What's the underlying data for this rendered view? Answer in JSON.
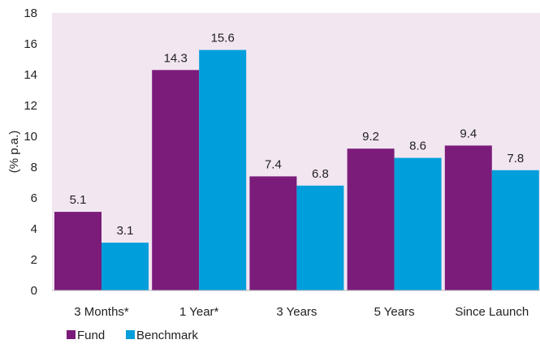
{
  "chart_data": {
    "type": "bar",
    "categories": [
      "3 Months*",
      "1 Year*",
      "3 Years",
      "5 Years",
      "Since Launch"
    ],
    "series": [
      {
        "name": "Fund",
        "values": [
          5.1,
          14.3,
          7.4,
          9.2,
          9.4
        ],
        "color": "#7B1C7A"
      },
      {
        "name": "Benchmark",
        "values": [
          3.1,
          15.6,
          6.8,
          8.6,
          7.8
        ],
        "color": "#009EDB"
      }
    ],
    "ylabel": "(% p.a.)",
    "xlabel": "",
    "ylim": [
      0,
      18
    ],
    "yticks": [
      0,
      2,
      4,
      6,
      8,
      10,
      12,
      14,
      16,
      18
    ],
    "data_labels": true,
    "legend_position": "bottom-left",
    "plot_background": "#F2E6F1",
    "grid": false
  }
}
